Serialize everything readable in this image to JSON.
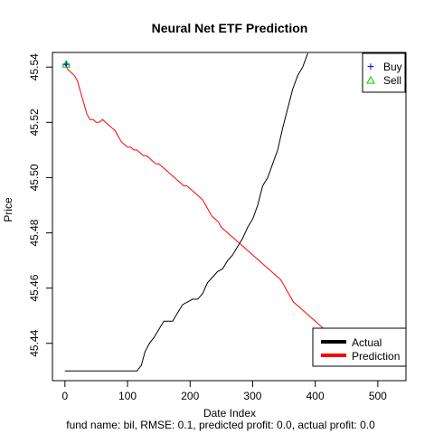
{
  "chart_data": {
    "type": "line",
    "title": "Neural Net ETF Prediction",
    "xlabel": "Date Index",
    "ylabel": "Price",
    "caption": "fund name: bil, RMSE: 0.1, predicted profit: 0.0, actual profit: 0.0",
    "xlim": [
      -20,
      545
    ],
    "ylim": [
      45.4265,
      45.5453
    ],
    "x_ticks": [
      0,
      100,
      200,
      300,
      400,
      500
    ],
    "x_tick_labels": [
      "0",
      "100",
      "200",
      "300",
      "400",
      "500"
    ],
    "y_ticks": [
      45.44,
      45.46,
      45.48,
      45.5,
      45.52,
      45.54
    ],
    "y_tick_labels": [
      "45.44",
      "45.46",
      "45.48",
      "45.50",
      "45.52",
      "45.54"
    ],
    "grid": false,
    "series": [
      {
        "name": "Actual",
        "color": "#000000",
        "values": [
          [
            0,
            45.43
          ],
          [
            15,
            45.43
          ],
          [
            30,
            45.43
          ],
          [
            45,
            45.43
          ],
          [
            60,
            45.43
          ],
          [
            75,
            45.43
          ],
          [
            90,
            45.43
          ],
          [
            105,
            45.43
          ],
          [
            115,
            45.43
          ],
          [
            122,
            45.432
          ],
          [
            128,
            45.437
          ],
          [
            135,
            45.44
          ],
          [
            142,
            45.442
          ],
          [
            150,
            45.445
          ],
          [
            158,
            45.448
          ],
          [
            165,
            45.448
          ],
          [
            172,
            45.448
          ],
          [
            180,
            45.451
          ],
          [
            188,
            45.454
          ],
          [
            196,
            45.455
          ],
          [
            204,
            45.456
          ],
          [
            212,
            45.456
          ],
          [
            220,
            45.458
          ],
          [
            228,
            45.462
          ],
          [
            236,
            45.464
          ],
          [
            244,
            45.466
          ],
          [
            252,
            45.467
          ],
          [
            260,
            45.47
          ],
          [
            268,
            45.472
          ],
          [
            276,
            45.475
          ],
          [
            284,
            45.478
          ],
          [
            292,
            45.482
          ],
          [
            300,
            45.485
          ],
          [
            308,
            45.49
          ],
          [
            316,
            45.497
          ],
          [
            324,
            45.5
          ],
          [
            332,
            45.505
          ],
          [
            340,
            45.51
          ],
          [
            348,
            45.518
          ],
          [
            356,
            45.525
          ],
          [
            364,
            45.532
          ],
          [
            372,
            45.537
          ],
          [
            380,
            45.54
          ],
          [
            388,
            45.545
          ]
        ]
      },
      {
        "name": "Prediction",
        "color": "#ff0000",
        "values": [
          [
            0,
            45.541
          ],
          [
            5,
            45.539
          ],
          [
            10,
            45.538
          ],
          [
            15,
            45.537
          ],
          [
            20,
            45.535
          ],
          [
            25,
            45.531
          ],
          [
            30,
            45.527
          ],
          [
            35,
            45.523
          ],
          [
            40,
            45.521
          ],
          [
            45,
            45.521
          ],
          [
            50,
            45.52
          ],
          [
            55,
            45.52
          ],
          [
            60,
            45.521
          ],
          [
            65,
            45.52
          ],
          [
            70,
            45.519
          ],
          [
            75,
            45.518
          ],
          [
            80,
            45.517
          ],
          [
            85,
            45.515
          ],
          [
            90,
            45.513
          ],
          [
            95,
            45.512
          ],
          [
            100,
            45.511
          ],
          [
            105,
            45.511
          ],
          [
            110,
            45.51
          ],
          [
            115,
            45.51
          ],
          [
            120,
            45.509
          ],
          [
            125,
            45.508
          ],
          [
            130,
            45.508
          ],
          [
            135,
            45.507
          ],
          [
            140,
            45.506
          ],
          [
            145,
            45.505
          ],
          [
            150,
            45.505
          ],
          [
            155,
            45.504
          ],
          [
            160,
            45.503
          ],
          [
            165,
            45.502
          ],
          [
            170,
            45.501
          ],
          [
            175,
            45.5
          ],
          [
            180,
            45.499
          ],
          [
            185,
            45.498
          ],
          [
            190,
            45.497
          ],
          [
            195,
            45.497
          ],
          [
            200,
            45.496
          ],
          [
            205,
            45.495
          ],
          [
            210,
            45.494
          ],
          [
            215,
            45.493
          ],
          [
            220,
            45.492
          ],
          [
            225,
            45.49
          ],
          [
            230,
            45.488
          ],
          [
            235,
            45.486
          ],
          [
            240,
            45.485
          ],
          [
            245,
            45.484
          ],
          [
            250,
            45.482
          ],
          [
            255,
            45.481
          ],
          [
            260,
            45.48
          ],
          [
            265,
            45.479
          ],
          [
            270,
            45.478
          ],
          [
            275,
            45.477
          ],
          [
            280,
            45.476
          ],
          [
            285,
            45.475
          ],
          [
            290,
            45.474
          ],
          [
            295,
            45.473
          ],
          [
            300,
            45.472
          ],
          [
            305,
            45.471
          ],
          [
            310,
            45.47
          ],
          [
            315,
            45.469
          ],
          [
            320,
            45.468
          ],
          [
            325,
            45.467
          ],
          [
            330,
            45.466
          ],
          [
            335,
            45.465
          ],
          [
            340,
            45.464
          ],
          [
            345,
            45.463
          ],
          [
            350,
            45.461
          ],
          [
            355,
            45.459
          ],
          [
            360,
            45.457
          ],
          [
            365,
            45.455
          ],
          [
            370,
            45.454
          ],
          [
            375,
            45.453
          ],
          [
            380,
            45.452
          ],
          [
            385,
            45.451
          ],
          [
            390,
            45.45
          ],
          [
            395,
            45.449
          ],
          [
            400,
            45.448
          ],
          [
            405,
            45.447
          ],
          [
            410,
            45.446
          ],
          [
            415,
            45.445
          ],
          [
            420,
            45.445
          ],
          [
            425,
            45.444
          ],
          [
            430,
            45.443
          ],
          [
            435,
            45.442
          ],
          [
            440,
            45.441
          ],
          [
            445,
            45.44
          ],
          [
            450,
            45.44
          ],
          [
            455,
            45.439
          ],
          [
            460,
            45.438
          ],
          [
            465,
            45.438
          ],
          [
            470,
            45.437
          ],
          [
            475,
            45.436
          ],
          [
            480,
            45.435
          ],
          [
            485,
            45.434
          ],
          [
            490,
            45.434
          ],
          [
            495,
            45.433
          ],
          [
            500,
            45.433
          ],
          [
            505,
            45.432
          ]
        ]
      }
    ],
    "markers": [
      {
        "name": "Buy",
        "symbol": "+",
        "color": "#0000ff",
        "x": 2,
        "y": 45.541
      },
      {
        "name": "Sell",
        "symbol": "triangle",
        "color": "#00cc00",
        "x": 2,
        "y": 45.541
      }
    ],
    "legends": [
      {
        "placement": "top-right",
        "entries": [
          {
            "label": "Buy",
            "symbol": "+",
            "color": "#0000ff"
          },
          {
            "label": "Sell",
            "symbol": "triangle",
            "color": "#00cc00"
          }
        ]
      },
      {
        "placement": "bottom-right",
        "entries": [
          {
            "label": "Actual",
            "symbol": "line",
            "color": "#000000"
          },
          {
            "label": "Prediction",
            "symbol": "line",
            "color": "#ff0000"
          }
        ]
      }
    ]
  }
}
